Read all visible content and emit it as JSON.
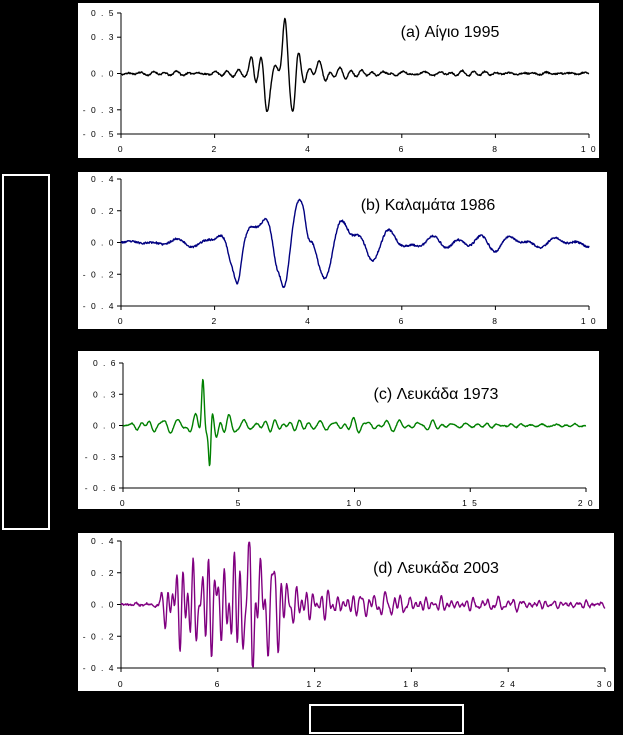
{
  "chart_data": [
    {
      "type": "line",
      "title": "(a) Αίγιο 1995",
      "color": "#000000",
      "xlim": [
        0,
        10
      ],
      "ylim": [
        -0.5,
        0.5
      ],
      "xticks": [
        0,
        2,
        4,
        6,
        8,
        10
      ],
      "xtick_labels": [
        "0",
        "2",
        "4",
        "6",
        "8",
        "1 0"
      ],
      "yticks": [
        0.5,
        0.3,
        0.0,
        -0.3,
        -0.5
      ],
      "ytick_labels": [
        "0 . 5",
        "0 . 3",
        "0 . 0",
        "- 0 . 3",
        "- 0 . 5"
      ],
      "series": [
        {
          "seed": 11,
          "duration": 10,
          "noise": 0.006,
          "envelope": [
            [
              0,
              0.01
            ],
            [
              1,
              0.015
            ],
            [
              2,
              0.02
            ],
            [
              2.7,
              0.03
            ],
            [
              3.0,
              0.15
            ],
            [
              3.5,
              0.25
            ],
            [
              4.0,
              0.12
            ],
            [
              5.0,
              0.05
            ],
            [
              6.0,
              0.025
            ],
            [
              8.0,
              0.012
            ],
            [
              10,
              0.008
            ]
          ],
          "pulses": [
            [
              2.8,
              0.12,
              0.06
            ],
            [
              3.1,
              -0.22,
              0.07
            ],
            [
              3.5,
              0.34,
              0.07
            ],
            [
              3.7,
              -0.16,
              0.06
            ],
            [
              4.1,
              0.06,
              0.1
            ]
          ],
          "freq": 3.2
        }
      ]
    },
    {
      "type": "line",
      "title": "(b) Καλαμάτα 1986",
      "color": "#000080",
      "xlim": [
        0,
        10
      ],
      "ylim": [
        -0.4,
        0.4
      ],
      "xticks": [
        0,
        2,
        4,
        6,
        8,
        10
      ],
      "xtick_labels": [
        "0",
        "2",
        "4",
        "6",
        "8",
        "1 0"
      ],
      "yticks": [
        0.4,
        0.2,
        0.0,
        -0.2,
        -0.4
      ],
      "ytick_labels": [
        "0 . 4",
        "0 . 2",
        "0 . 0",
        "- 0 . 2",
        "- 0 . 4"
      ],
      "series": [
        {
          "seed": 23,
          "duration": 10,
          "noise": 0.006,
          "envelope": [
            [
              0,
              0.005
            ],
            [
              1,
              0.02
            ],
            [
              2,
              0.04
            ],
            [
              2.3,
              0.2
            ],
            [
              3.3,
              0.28
            ],
            [
              4.0,
              0.25
            ],
            [
              5.0,
              0.17
            ],
            [
              5.5,
              0.08
            ],
            [
              6.0,
              0.06
            ],
            [
              8.0,
              0.045
            ],
            [
              10,
              0.02
            ]
          ],
          "pulses": [
            [
              2.5,
              -0.1,
              0.08
            ],
            [
              3.4,
              0.1,
              0.08
            ],
            [
              4.0,
              -0.1,
              0.08
            ]
          ],
          "freq": 1.5
        }
      ]
    },
    {
      "type": "line",
      "title": "(c) Λευκάδα 1973",
      "color": "#008000",
      "xlim": [
        0,
        20
      ],
      "ylim": [
        -0.6,
        0.6
      ],
      "xticks": [
        0,
        5,
        10,
        15,
        20
      ],
      "xtick_labels": [
        "0",
        "5",
        "1 0",
        "1 5",
        "2 0"
      ],
      "yticks": [
        0.6,
        0.3,
        0.0,
        -0.3,
        -0.6
      ],
      "ytick_labels": [
        "0 . 6",
        "0 . 3",
        "0 . 0",
        "- 0 . 3",
        "- 0 . 6"
      ],
      "series": [
        {
          "seed": 37,
          "duration": 20,
          "noise": 0.004,
          "envelope": [
            [
              0,
              0.005
            ],
            [
              1,
              0.05
            ],
            [
              2.5,
              0.08
            ],
            [
              3.2,
              0.1
            ],
            [
              3.6,
              0.15
            ],
            [
              4.5,
              0.12
            ],
            [
              6,
              0.07
            ],
            [
              10,
              0.05
            ],
            [
              15,
              0.025
            ],
            [
              20,
              0.012
            ]
          ],
          "pulses": [
            [
              3.45,
              0.5,
              0.08
            ],
            [
              3.75,
              -0.48,
              0.07
            ]
          ],
          "freq": 1.6
        }
      ]
    },
    {
      "type": "line",
      "title": "(d) Λευκάδα 2003",
      "color": "#800080",
      "xlim": [
        0,
        30
      ],
      "ylim": [
        -0.4,
        0.4
      ],
      "xticks": [
        0,
        6,
        12,
        18,
        24,
        30
      ],
      "xtick_labels": [
        "0",
        "6",
        "1 2",
        "1 8",
        "2 4",
        "3 0"
      ],
      "yticks": [
        0.4,
        0.2,
        0.0,
        -0.2,
        -0.4
      ],
      "ytick_labels": [
        "0 . 4",
        "0 . 2",
        "0 . 0",
        "- 0 . 2",
        "- 0 . 4"
      ],
      "series": [
        {
          "seed": 51,
          "duration": 30,
          "noise": 0.005,
          "envelope": [
            [
              0,
              0.003
            ],
            [
              2,
              0.01
            ],
            [
              2.6,
              0.06
            ],
            [
              3.2,
              0.33
            ],
            [
              5,
              0.32
            ],
            [
              7.5,
              0.38
            ],
            [
              9,
              0.28
            ],
            [
              11,
              0.12
            ],
            [
              14,
              0.07
            ],
            [
              18,
              0.05
            ],
            [
              24,
              0.03
            ],
            [
              30,
              0.02
            ]
          ],
          "pulses": [],
          "freq": 1.6
        }
      ]
    }
  ]
}
